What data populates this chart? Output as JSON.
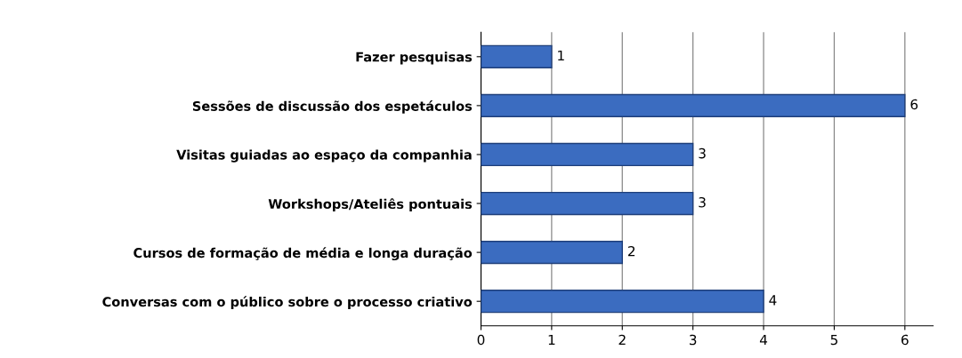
{
  "chart_data": {
    "type": "bar",
    "orientation": "horizontal",
    "categories": [
      "Fazer pesquisas",
      "Sessões de discussão dos espetáculos",
      "Visitas guiadas ao espaço da companhia",
      "Workshops/Ateliês pontuais",
      "Cursos de formação de média e longa duração",
      "Conversas com o público sobre o processo criativo"
    ],
    "values": [
      1,
      6,
      3,
      3,
      2,
      4
    ],
    "color": "#3b6cc0",
    "xlim": [
      0,
      6.4
    ],
    "xticks": [
      0,
      1,
      2,
      3,
      4,
      5,
      6
    ],
    "grid": "x",
    "data_labels": true
  }
}
